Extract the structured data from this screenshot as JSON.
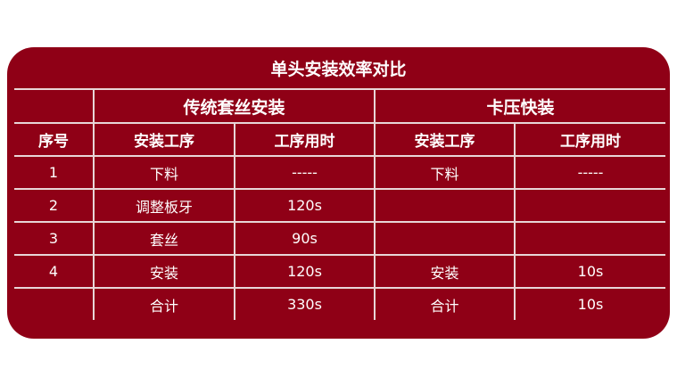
{
  "title": "单头安装效率对比",
  "groups": [
    "传统套丝安装",
    "卡压快装"
  ],
  "columns": [
    "序号",
    "安装工序",
    "工序用时",
    "安装工序",
    "工序用时"
  ],
  "rows": [
    [
      "1",
      "下料",
      "-----",
      "下料",
      "-----"
    ],
    [
      "2",
      "调整板牙",
      "120s",
      "",
      ""
    ],
    [
      "3",
      "套丝",
      "90s",
      "",
      ""
    ],
    [
      "4",
      "安装",
      "120s",
      "安装",
      "10s"
    ],
    [
      "",
      "合计",
      "330s",
      "合计",
      "10s"
    ]
  ],
  "colors": {
    "panel": "#8f0016",
    "text": "#ffffff"
  }
}
